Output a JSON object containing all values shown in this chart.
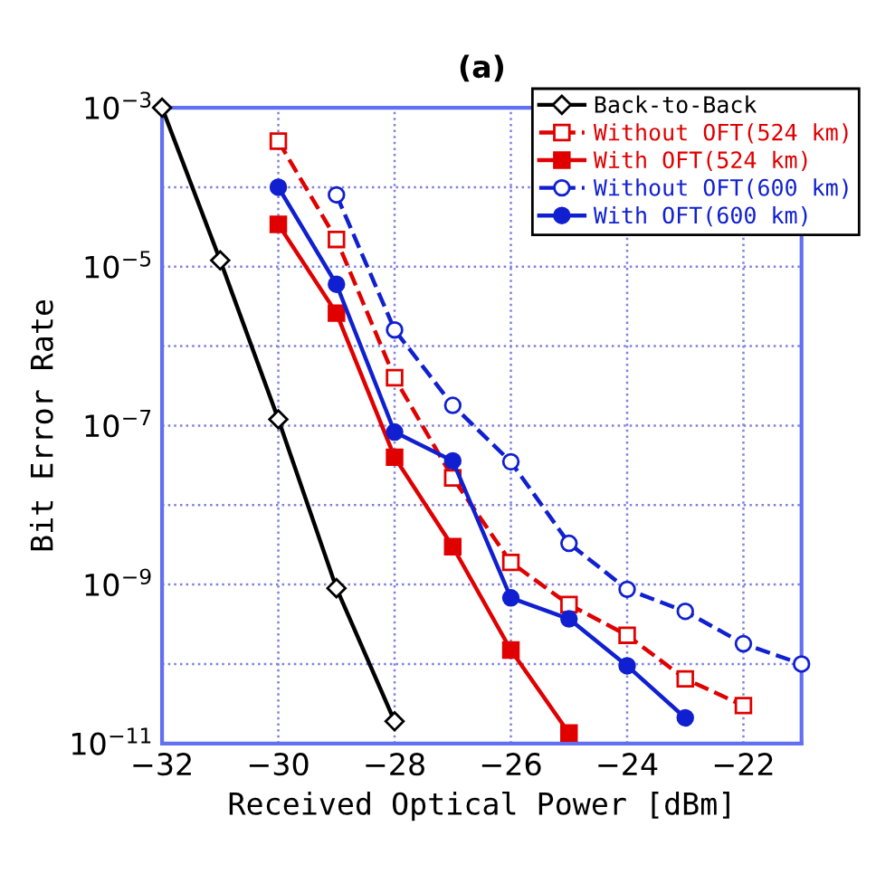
{
  "chart_data": {
    "type": "line",
    "title": "(a)",
    "xlabel": "Received Optical Power [dBm]",
    "ylabel": "Bit Error Rate",
    "log": "y",
    "grid": true,
    "legend": "top right",
    "xlim": [
      -32,
      -21
    ],
    "xticks": [
      -32,
      -30,
      -28,
      -26,
      -24,
      -22
    ],
    "ylim": [
      1e-11,
      0.001
    ],
    "yticks": [
      {
        "value": 1e-11,
        "label": "10$^{−11}$"
      },
      {
        "value": 1e-10,
        "label": null
      },
      {
        "value": 1e-09,
        "label": "10$^{−9}$"
      },
      {
        "value": 1e-08,
        "label": null
      },
      {
        "value": 1e-07,
        "label": "10$^{−7}$"
      },
      {
        "value": 1e-06,
        "label": null
      },
      {
        "value": 1e-05,
        "label": "10$^{−5}$"
      },
      {
        "value": 0.0001,
        "label": null
      },
      {
        "value": 0.001,
        "label": "10$^{−3}$"
      }
    ],
    "series": [
      {
        "name": "Back-to-Back",
        "color": "#000000",
        "marker": "diamond",
        "line_style": "solid",
        "x": [
          -32,
          -31,
          -30,
          -29,
          -28
        ],
        "values": [
          0.001,
          1.2e-05,
          1.2e-07,
          9e-10,
          1.9e-11
        ]
      },
      {
        "name": "Without OFT(524 km)",
        "color": "#e00000",
        "marker": "square",
        "line_style": "dashed",
        "x": [
          -30,
          -29,
          -28,
          -27,
          -26,
          -25,
          -24,
          -23,
          -22
        ],
        "values": [
          0.00038,
          2.2e-05,
          4e-07,
          2.2e-08,
          1.9e-09,
          5.6e-10,
          2.3e-10,
          6.5e-11,
          3e-11
        ]
      },
      {
        "name": "With OFT(524 km)",
        "color": "#e00000",
        "marker": "square",
        "line_style": "solid",
        "x": [
          -30,
          -29,
          -28,
          -27,
          -26,
          -25
        ],
        "values": [
          3.4e-05,
          2.6e-06,
          4e-08,
          3e-09,
          1.5e-10,
          1.35e-11
        ]
      },
      {
        "name": "Without OFT(600 km)",
        "color": "#1020d0",
        "marker": "circle",
        "line_style": "dashed",
        "x": [
          -29,
          -28,
          -27,
          -26,
          -25,
          -24,
          -23,
          -22,
          -21
        ],
        "values": [
          8e-05,
          1.6e-06,
          1.8e-07,
          3.5e-08,
          3.3e-09,
          8.7e-10,
          4.6e-10,
          1.8e-10,
          1e-10
        ]
      },
      {
        "name": "With OFT(600 km)",
        "color": "#1020d0",
        "marker": "circle",
        "line_style": "solid",
        "x": [
          -30,
          -29,
          -28,
          -27,
          -26,
          -25,
          -24,
          -23
        ],
        "values": [
          0.0001,
          6e-06,
          8.3e-08,
          3.6e-08,
          6.8e-10,
          3.7e-10,
          9.5e-11,
          2.1e-11
        ]
      }
    ]
  }
}
